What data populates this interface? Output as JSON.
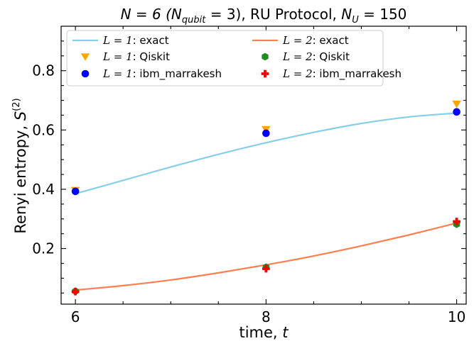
{
  "chart_data": {
    "type": "scatter",
    "title": "N = 6 (N_qubit = 3), RU Protocol, N_U = 150",
    "title_parts": {
      "n": "N = 6 (",
      "nqubit_base": "N",
      "nqubit_sub": "qubit",
      "nqubit_val": " = 3), RU Protocol, ",
      "nu_base": "N",
      "nu_sub": "U",
      "nu_val": " = 150"
    },
    "xlabel": "time, t",
    "xlabel_parts": {
      "text": "time, ",
      "var": "t"
    },
    "ylabel": "Renyi entropy, S^(2)",
    "ylabel_parts": {
      "text": "Renyi entropy, ",
      "var": "S",
      "sup": "(2)"
    },
    "xlim": [
      5.85,
      10.1
    ],
    "ylim": [
      0.0125,
      0.95
    ],
    "xticks": [
      6,
      8,
      10
    ],
    "xtick_labels": [
      "6",
      "8",
      "10"
    ],
    "yticks": [
      0.2,
      0.4,
      0.6,
      0.8
    ],
    "ytick_labels": [
      "0.2",
      "0.4",
      "0.6",
      "0.8"
    ],
    "legend_position": "top",
    "series": [
      {
        "name": "L = 1: exact",
        "name_math": "L = 1",
        "name_rest": ": exact",
        "kind": "line",
        "color": "#87ceeb",
        "x": [
          6.0,
          6.5,
          7.0,
          7.5,
          8.0,
          8.5,
          9.0,
          9.5,
          10.0
        ],
        "y": [
          0.385,
          0.43,
          0.475,
          0.518,
          0.557,
          0.592,
          0.622,
          0.644,
          0.657
        ]
      },
      {
        "name": "L = 1: Qiskit",
        "name_math": "L = 1",
        "name_rest": ": Qiskit",
        "kind": "marker",
        "marker": "triangle-down",
        "color": "#ffa500",
        "x": [
          6,
          8,
          10
        ],
        "y": [
          0.397,
          0.602,
          0.688
        ]
      },
      {
        "name": "L = 1: ibm_marrakesh",
        "name_math": "L = 1",
        "name_rest": ": ibm_marrakesh",
        "kind": "marker",
        "marker": "circle",
        "color": "#0000ff",
        "x": [
          6,
          8,
          10
        ],
        "y": [
          0.393,
          0.589,
          0.661
        ]
      },
      {
        "name": "L = 2: exact",
        "name_math": "L = 2",
        "name_rest": ": exact",
        "kind": "line",
        "color": "#ff7f50",
        "x": [
          6.0,
          6.5,
          7.0,
          7.5,
          8.0,
          8.5,
          9.0,
          9.5,
          10.0
        ],
        "y": [
          0.06,
          0.075,
          0.094,
          0.118,
          0.145,
          0.175,
          0.209,
          0.246,
          0.286
        ]
      },
      {
        "name": "L = 2: Qiskit",
        "name_math": "L = 2",
        "name_rest": ": Qiskit",
        "kind": "marker",
        "marker": "hexagon",
        "color": "#228b22",
        "x": [
          6,
          8,
          10
        ],
        "y": [
          0.056,
          0.137,
          0.282
        ]
      },
      {
        "name": "L = 2: ibm_marrakesh",
        "name_math": "L = 2",
        "name_rest": ": ibm_marrakesh",
        "kind": "marker",
        "marker": "plus",
        "color": "#ff0000",
        "x": [
          6,
          8,
          10
        ],
        "y": [
          0.055,
          0.132,
          0.291
        ]
      }
    ]
  }
}
